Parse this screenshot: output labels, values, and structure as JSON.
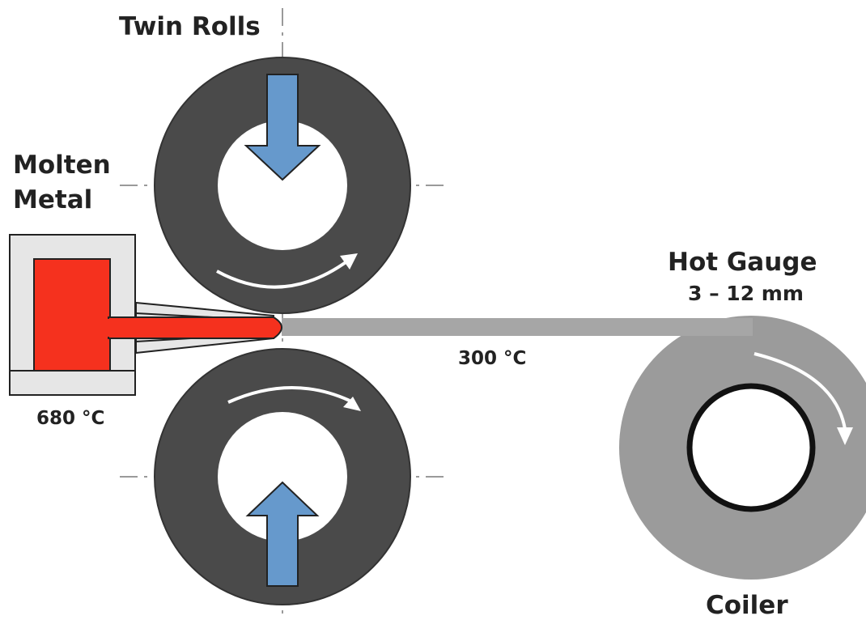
{
  "labels": {
    "twin_rolls": "Twin Rolls",
    "molten_line1": "Molten",
    "molten_line2": "Metal",
    "hot_gauge": "Hot Gauge",
    "gauge_range": "3 – 12 mm",
    "strip_temp": "300 °C",
    "melt_temp": "680 °C",
    "coiler": "Coiler"
  },
  "colors": {
    "roll": "#4a4a4a",
    "strip": "#a6a6a6",
    "coil": "#9b9b9b",
    "molten": "#f5311e",
    "arrow": "#6699cc",
    "tundish": "#e6e6e6"
  }
}
